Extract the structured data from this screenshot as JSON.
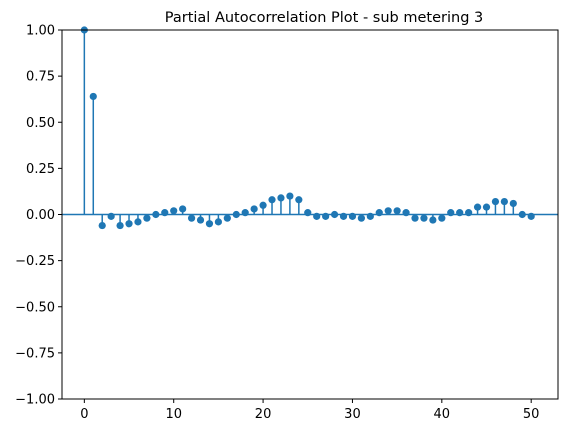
{
  "chart_data": {
    "type": "scatter",
    "subtype": "stem",
    "title": "Partial Autocorrelation Plot - sub metering 3",
    "xlabel": "",
    "ylabel": "",
    "xlim": [
      -2.5,
      53
    ],
    "ylim": [
      -1.0,
      1.0
    ],
    "xticks": [
      0,
      10,
      20,
      30,
      40,
      50
    ],
    "yticks": [
      -1.0,
      -0.75,
      -0.5,
      -0.25,
      0.0,
      0.25,
      0.5,
      0.75,
      1.0
    ],
    "ytick_labels": [
      "−1.00",
      "−0.75",
      "−0.50",
      "−0.25",
      "0.00",
      "0.25",
      "0.50",
      "0.75",
      "1.00"
    ],
    "xtick_labels": [
      "0",
      "10",
      "20",
      "30",
      "40",
      "50"
    ],
    "grid": false,
    "legend": false,
    "color": "#1f77b4",
    "x": [
      0,
      1,
      2,
      3,
      4,
      5,
      6,
      7,
      8,
      9,
      10,
      11,
      12,
      13,
      14,
      15,
      16,
      17,
      18,
      19,
      20,
      21,
      22,
      23,
      24,
      25,
      26,
      27,
      28,
      29,
      30,
      31,
      32,
      33,
      34,
      35,
      36,
      37,
      38,
      39,
      40,
      41,
      42,
      43,
      44,
      45,
      46,
      47,
      48,
      49,
      50
    ],
    "values": [
      1.0,
      0.64,
      -0.06,
      -0.01,
      -0.06,
      -0.05,
      -0.04,
      -0.02,
      0.0,
      0.01,
      0.02,
      0.03,
      -0.02,
      -0.03,
      -0.05,
      -0.04,
      -0.02,
      0.0,
      0.01,
      0.03,
      0.05,
      0.08,
      0.09,
      0.1,
      0.08,
      0.01,
      -0.01,
      -0.01,
      0.0,
      -0.01,
      -0.01,
      -0.02,
      -0.01,
      0.01,
      0.02,
      0.02,
      0.01,
      -0.02,
      -0.02,
      -0.03,
      -0.02,
      0.01,
      0.01,
      0.01,
      0.04,
      0.04,
      0.07,
      0.07,
      0.06,
      0.0,
      -0.01
    ]
  }
}
